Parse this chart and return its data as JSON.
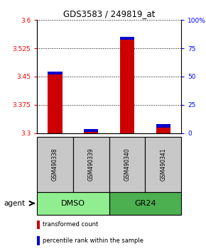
{
  "title": "GDS3583 / 249819_at",
  "samples": [
    "GSM490338",
    "GSM490339",
    "GSM490340",
    "GSM490341"
  ],
  "red_values": [
    3.455,
    3.303,
    3.548,
    3.315
  ],
  "blue_values": [
    0.012,
    0.006,
    0.013,
    0.005
  ],
  "ylim_left": [
    3.3,
    3.6
  ],
  "ylim_right": [
    0,
    100
  ],
  "yticks_left": [
    3.3,
    3.375,
    3.45,
    3.525,
    3.6
  ],
  "yticks_right": [
    0,
    25,
    50,
    75,
    100
  ],
  "ytick_labels_left": [
    "3.3",
    "3.375",
    "3.45",
    "3.525",
    "3.6"
  ],
  "ytick_labels_right": [
    "0",
    "25",
    "50",
    "75",
    "100%"
  ],
  "groups": [
    {
      "label": "DMSO",
      "samples": [
        0,
        1
      ],
      "color": "#90EE90"
    },
    {
      "label": "GR24",
      "samples": [
        2,
        3
      ],
      "color": "#4CAF50"
    }
  ],
  "group_label": "agent",
  "legend": [
    {
      "color": "#CC0000",
      "label": "transformed count"
    },
    {
      "color": "#0000CC",
      "label": "percentile rank within the sample"
    }
  ],
  "bar_width": 0.4,
  "red_color": "#CC0000",
  "blue_color": "#0000CC",
  "sample_box_color": "#C8C8C8",
  "background_color": "#FFFFFF"
}
